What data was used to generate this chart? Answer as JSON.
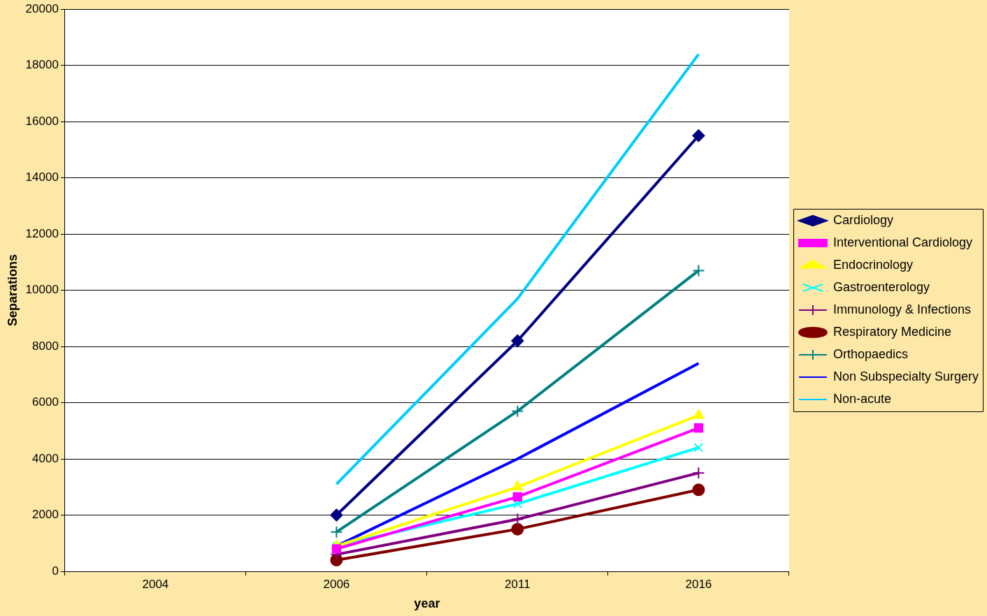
{
  "chart_data": {
    "type": "line",
    "xlabel": "year",
    "ylabel": "Separations",
    "categories": [
      "2004",
      "2006",
      "2011",
      "2016"
    ],
    "series": [
      {
        "name": "Cardiology",
        "color": "#000080",
        "marker": "diamond",
        "values": [
          null,
          2000,
          8200,
          15500
        ]
      },
      {
        "name": "Interventional Cardiology",
        "color": "#ff00ff",
        "marker": "square",
        "values": [
          null,
          800,
          2650,
          5100
        ]
      },
      {
        "name": "Endocrinology",
        "color": "#ffff00",
        "marker": "triangle",
        "values": [
          null,
          900,
          3000,
          5550
        ]
      },
      {
        "name": "Gastroenterology",
        "color": "#00ffff",
        "marker": "x",
        "values": [
          null,
          900,
          2400,
          4400
        ]
      },
      {
        "name": "Immunology & Infections",
        "color": "#800080",
        "marker": "cross",
        "values": [
          null,
          600,
          1850,
          3500
        ]
      },
      {
        "name": "Respiratory Medicine",
        "color": "#800000",
        "marker": "circle",
        "values": [
          null,
          400,
          1500,
          2900
        ]
      },
      {
        "name": "Orthopaedics",
        "color": "#008080",
        "marker": "cross",
        "values": [
          null,
          1400,
          5700,
          10700
        ]
      },
      {
        "name": "Non Subspecialty Surgery",
        "color": "#0000ff",
        "marker": "none",
        "values": [
          null,
          900,
          4000,
          7400
        ]
      },
      {
        "name": "Non-acute",
        "color": "#00ccff",
        "marker": "none",
        "values": [
          null,
          3100,
          9700,
          18400
        ]
      }
    ],
    "ylim": [
      0,
      20000
    ],
    "yticks": [
      0,
      2000,
      4000,
      6000,
      8000,
      10000,
      12000,
      14000,
      16000,
      18000,
      20000
    ],
    "grid": "y",
    "legend": "right",
    "line_style": "solid"
  }
}
